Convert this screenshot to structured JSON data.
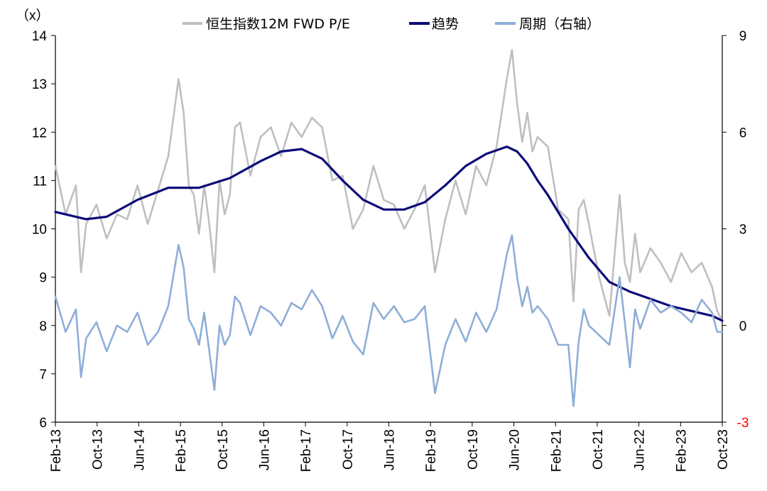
{
  "chart_data": {
    "type": "line",
    "title": "",
    "left_unit_label": "（x）",
    "legend": [
      {
        "name": "恒生指数12M FWD P/E",
        "color": "#bfbfbf",
        "axis": "left"
      },
      {
        "name": "趋势",
        "color": "#0b0b7a",
        "axis": "left"
      },
      {
        "name": "周期（右轴）",
        "color": "#8eaed8",
        "axis": "right"
      }
    ],
    "x_ticks": [
      "Feb-13",
      "Oct-13",
      "Jun-14",
      "Feb-15",
      "Oct-15",
      "Jun-16",
      "Feb-17",
      "Oct-17",
      "Jun-18",
      "Feb-19",
      "Oct-19",
      "Jun-20",
      "Feb-21",
      "Oct-21",
      "Jun-22",
      "Feb-23",
      "Oct-23"
    ],
    "x_range_months": [
      0,
      130
    ],
    "y_left": {
      "min": 6,
      "max": 14,
      "ticks": [
        "6",
        "7",
        "8",
        "9",
        "10",
        "11",
        "12",
        "13",
        "14"
      ]
    },
    "y_right": {
      "min": -3,
      "max": 9,
      "ticks": [
        "-3",
        "0",
        "3",
        "6",
        "9"
      ],
      "highlight_tick": "-3",
      "highlight_color": "#ff0000"
    },
    "series": [
      {
        "name": "恒生指数12M FWD P/E",
        "axis": "left",
        "x": [
          0,
          2,
          4,
          5,
          6,
          8,
          10,
          12,
          14,
          16,
          18,
          20,
          22,
          24,
          25,
          26,
          27,
          28,
          29,
          30,
          31,
          32,
          33,
          34,
          35,
          36,
          38,
          40,
          42,
          44,
          46,
          48,
          50,
          52,
          54,
          56,
          58,
          60,
          62,
          64,
          66,
          68,
          70,
          72,
          74,
          76,
          78,
          80,
          82,
          84,
          86,
          88,
          89,
          90,
          91,
          92,
          93,
          94,
          96,
          98,
          100,
          101,
          102,
          103,
          104,
          106,
          108,
          110,
          111,
          112,
          113,
          114,
          116,
          118,
          120,
          122,
          124,
          126,
          128,
          129,
          130
        ],
        "y": [
          11.3,
          10.3,
          10.9,
          9.1,
          10.1,
          10.5,
          9.8,
          10.3,
          10.2,
          10.9,
          10.1,
          10.8,
          11.5,
          13.1,
          12.4,
          10.9,
          10.7,
          9.9,
          10.9,
          10.1,
          9.1,
          11.0,
          10.3,
          10.7,
          12.1,
          12.2,
          11.1,
          11.9,
          12.1,
          11.5,
          12.2,
          11.9,
          12.3,
          12.1,
          11.0,
          11.1,
          10.0,
          10.4,
          11.3,
          10.6,
          10.5,
          10.0,
          10.4,
          10.9,
          9.1,
          10.2,
          11.0,
          10.3,
          11.3,
          10.9,
          11.7,
          13.1,
          13.7,
          12.6,
          11.8,
          12.4,
          11.6,
          11.9,
          11.7,
          10.4,
          10.2,
          8.5,
          10.4,
          10.6,
          10.1,
          9.0,
          8.2,
          10.7,
          9.3,
          8.9,
          9.9,
          9.1,
          9.6,
          9.3,
          8.9,
          9.5,
          9.1,
          9.3,
          8.8,
          8.3,
          8.1
        ]
      },
      {
        "name": "趋势",
        "axis": "left",
        "x": [
          0,
          6,
          10,
          16,
          22,
          28,
          34,
          40,
          44,
          48,
          52,
          56,
          60,
          64,
          68,
          72,
          76,
          80,
          84,
          88,
          90,
          92,
          94,
          96,
          100,
          104,
          108,
          112,
          116,
          120,
          124,
          128,
          130
        ],
        "y": [
          10.35,
          10.2,
          10.25,
          10.6,
          10.85,
          10.85,
          11.05,
          11.4,
          11.6,
          11.65,
          11.45,
          11.0,
          10.6,
          10.4,
          10.4,
          10.55,
          10.9,
          11.3,
          11.55,
          11.7,
          11.6,
          11.35,
          11.0,
          10.7,
          10.0,
          9.4,
          8.9,
          8.7,
          8.55,
          8.4,
          8.3,
          8.2,
          8.1
        ]
      },
      {
        "name": "周期（右轴）",
        "axis": "right",
        "x": [
          0,
          2,
          4,
          5,
          6,
          8,
          10,
          12,
          14,
          16,
          18,
          20,
          22,
          24,
          25,
          26,
          27,
          28,
          29,
          30,
          31,
          32,
          33,
          34,
          35,
          36,
          38,
          40,
          42,
          44,
          46,
          48,
          50,
          52,
          54,
          56,
          58,
          60,
          62,
          64,
          66,
          68,
          70,
          72,
          74,
          76,
          78,
          80,
          82,
          84,
          86,
          88,
          89,
          90,
          91,
          92,
          93,
          94,
          96,
          98,
          100,
          101,
          102,
          103,
          104,
          106,
          108,
          110,
          111,
          112,
          113,
          114,
          116,
          118,
          120,
          122,
          124,
          126,
          128,
          129,
          130
        ],
        "y": [
          0.9,
          -0.2,
          0.5,
          -1.6,
          -0.4,
          0.1,
          -0.8,
          0.0,
          -0.2,
          0.4,
          -0.6,
          -0.2,
          0.6,
          2.5,
          1.8,
          0.2,
          -0.1,
          -0.6,
          0.4,
          -0.8,
          -2.0,
          0.0,
          -0.6,
          -0.3,
          0.9,
          0.7,
          -0.3,
          0.6,
          0.4,
          0.0,
          0.7,
          0.5,
          1.1,
          0.6,
          -0.4,
          0.3,
          -0.5,
          -0.9,
          0.7,
          0.2,
          0.6,
          0.1,
          0.2,
          0.6,
          -2.1,
          -0.6,
          0.2,
          -0.5,
          0.4,
          -0.2,
          0.5,
          2.2,
          2.8,
          1.5,
          0.6,
          1.2,
          0.4,
          0.6,
          0.2,
          -0.6,
          -0.6,
          -2.5,
          -0.5,
          0.5,
          0.0,
          -0.3,
          -0.6,
          1.5,
          0.1,
          -1.3,
          0.5,
          -0.1,
          0.8,
          0.4,
          0.6,
          0.4,
          0.1,
          0.8,
          0.4,
          -0.2,
          -0.2
        ]
      }
    ]
  }
}
